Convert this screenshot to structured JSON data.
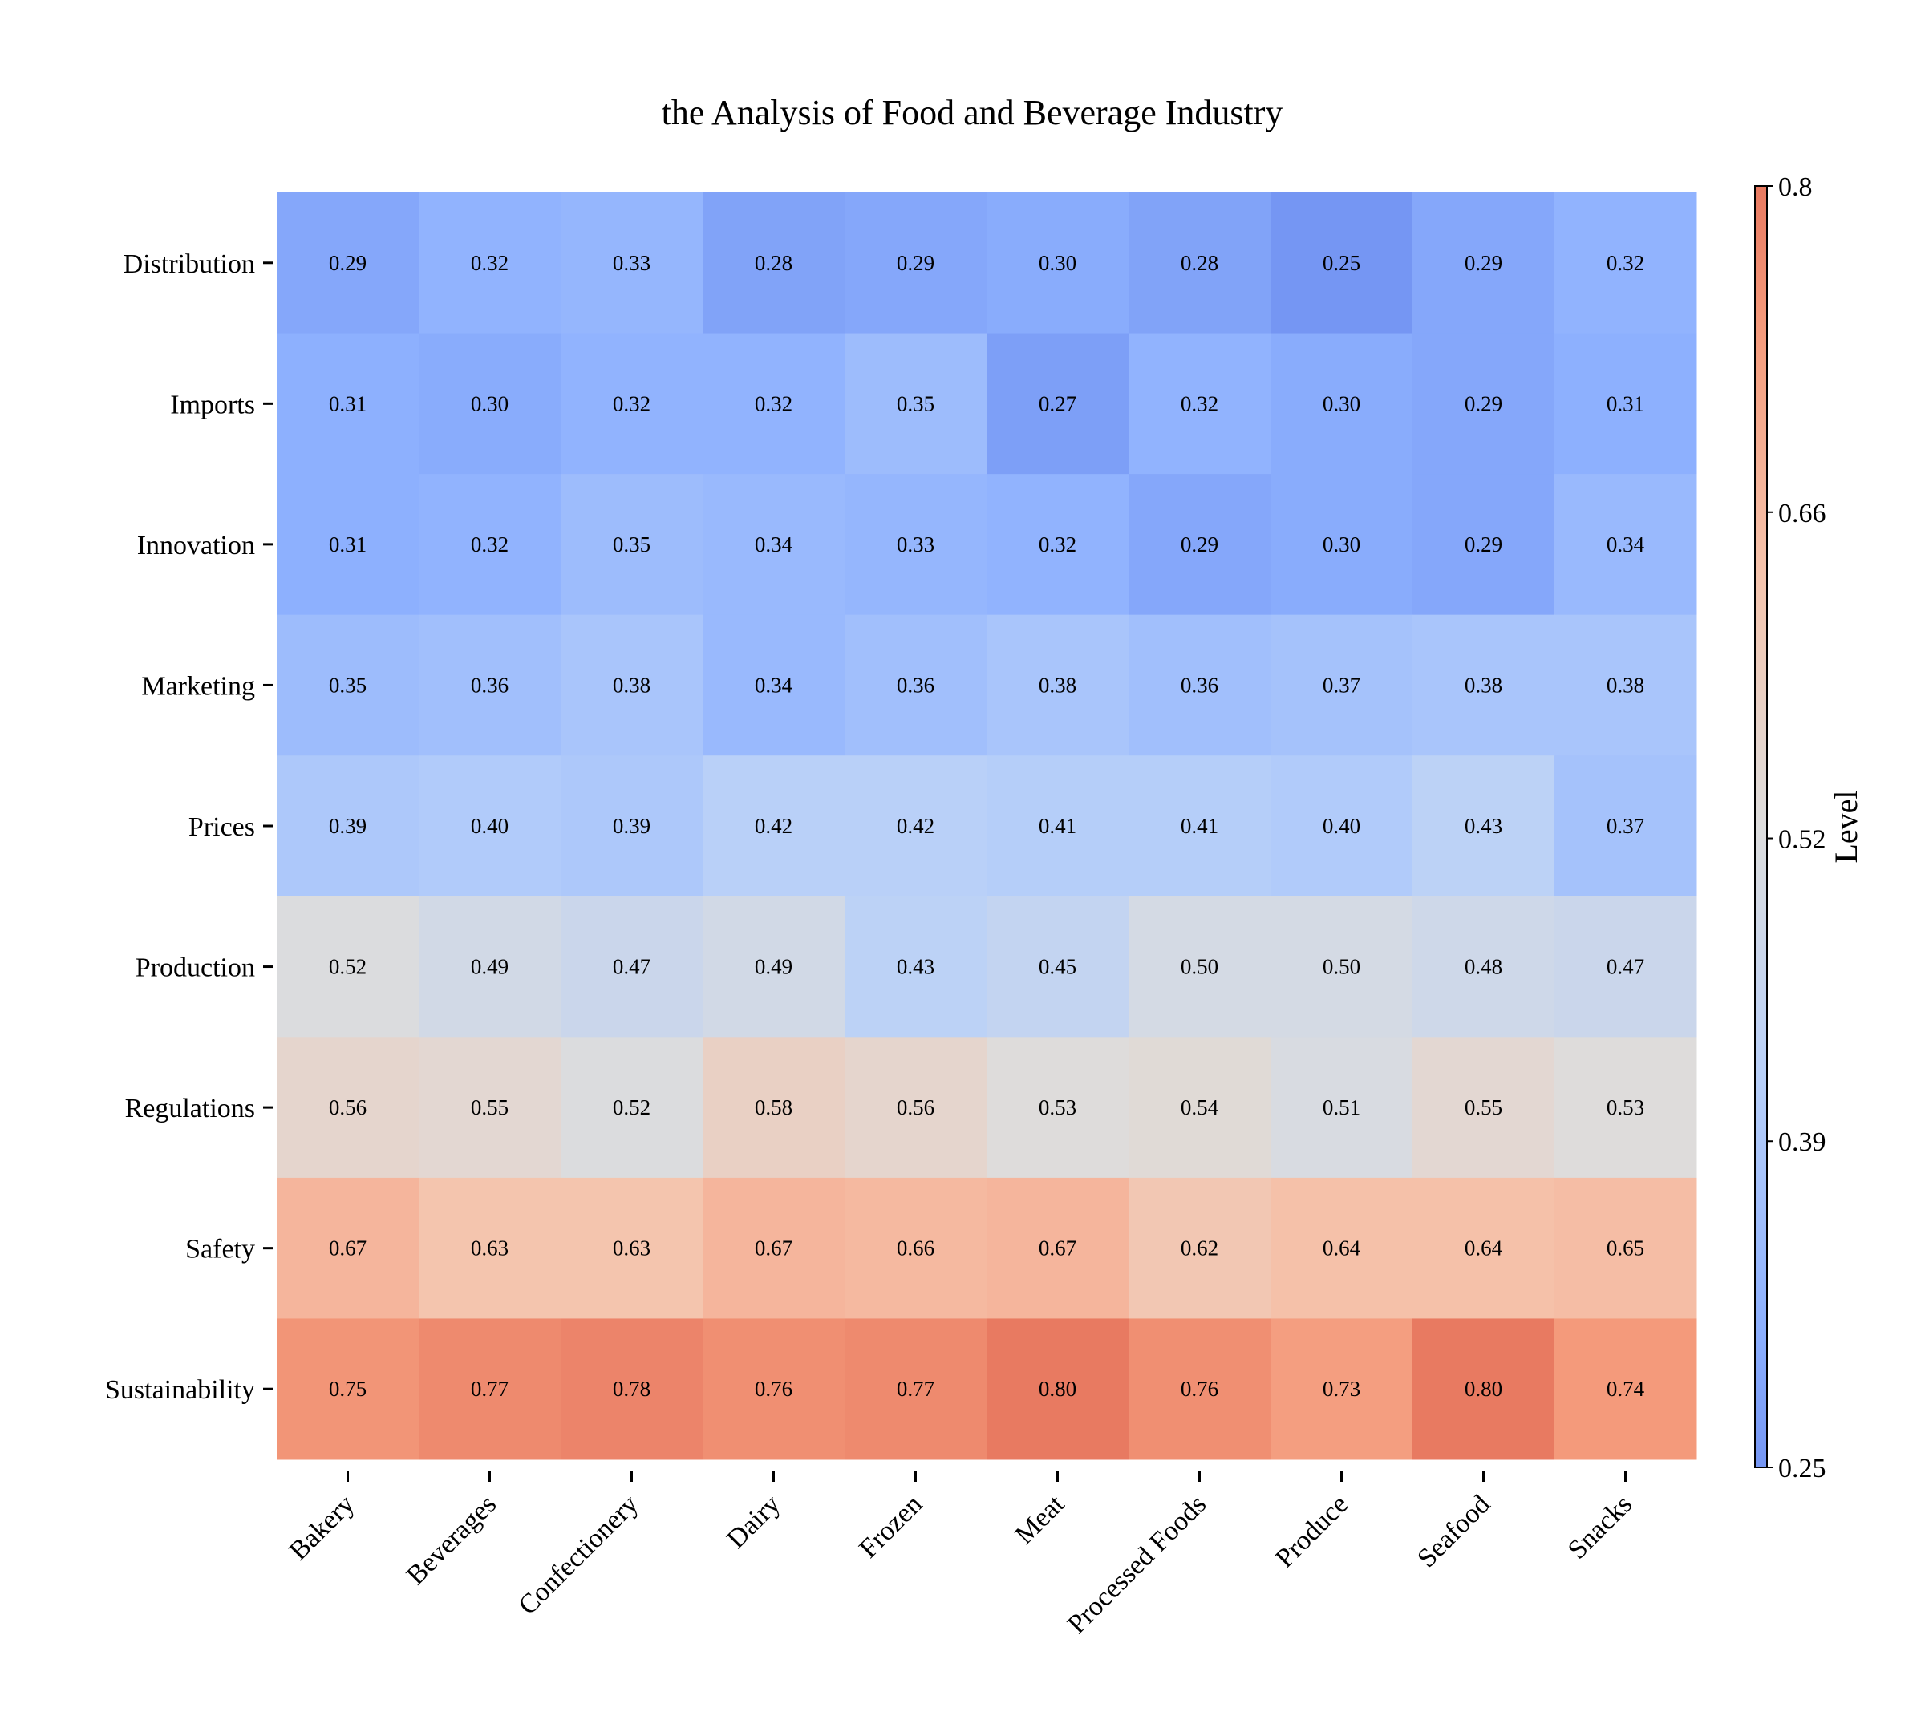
{
  "chart_data": {
    "type": "heatmap",
    "title": "the Analysis of Food and Beverage Industry",
    "x_categories": [
      "Bakery",
      "Beverages",
      "Confectionery",
      "Dairy",
      "Frozen",
      "Meat",
      "Processed Foods",
      "Produce",
      "Seafood",
      "Snacks"
    ],
    "y_categories": [
      "Distribution",
      "Imports",
      "Innovation",
      "Marketing",
      "Prices",
      "Production",
      "Regulations",
      "Safety",
      "Sustainability"
    ],
    "values": [
      [
        0.29,
        0.32,
        0.33,
        0.28,
        0.29,
        0.3,
        0.28,
        0.25,
        0.29,
        0.32
      ],
      [
        0.31,
        0.3,
        0.32,
        0.32,
        0.35,
        0.27,
        0.32,
        0.3,
        0.29,
        0.31
      ],
      [
        0.31,
        0.32,
        0.35,
        0.34,
        0.33,
        0.32,
        0.29,
        0.3,
        0.29,
        0.34
      ],
      [
        0.35,
        0.36,
        0.38,
        0.34,
        0.36,
        0.38,
        0.36,
        0.37,
        0.38,
        0.38
      ],
      [
        0.39,
        0.4,
        0.39,
        0.42,
        0.42,
        0.41,
        0.41,
        0.4,
        0.43,
        0.37
      ],
      [
        0.52,
        0.49,
        0.47,
        0.49,
        0.43,
        0.45,
        0.5,
        0.5,
        0.48,
        0.47
      ],
      [
        0.56,
        0.55,
        0.52,
        0.58,
        0.56,
        0.53,
        0.54,
        0.51,
        0.55,
        0.53
      ],
      [
        0.67,
        0.63,
        0.63,
        0.67,
        0.66,
        0.67,
        0.62,
        0.64,
        0.64,
        0.65
      ],
      [
        0.75,
        0.77,
        0.78,
        0.76,
        0.77,
        0.8,
        0.76,
        0.73,
        0.8,
        0.74
      ]
    ],
    "colorbar": {
      "label": "Level",
      "range": [
        0.25,
        0.8
      ],
      "ticks": [
        "0.25",
        "0.39",
        "0.52",
        "0.66",
        "0.8"
      ],
      "colormap": "coolwarm",
      "low_color": "#6f92f3",
      "high_color": "#e8765c"
    }
  }
}
